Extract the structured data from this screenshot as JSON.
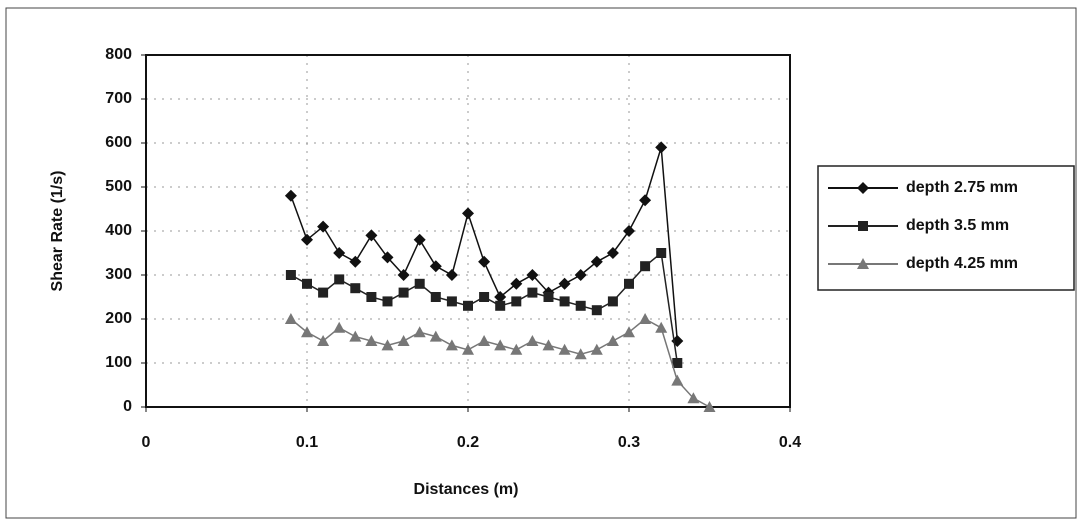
{
  "chart_data": {
    "type": "line",
    "x_label": "Distances (m)",
    "y_label": "Shear Rate (1/s)",
    "x": [
      0.09,
      0.1,
      0.11,
      0.12,
      0.13,
      0.14,
      0.15,
      0.16,
      0.17,
      0.18,
      0.19,
      0.2,
      0.21,
      0.22,
      0.23,
      0.24,
      0.25,
      0.26,
      0.27,
      0.28,
      0.29,
      0.3,
      0.31,
      0.32,
      0.33,
      0.34,
      0.35
    ],
    "series": [
      {
        "name": "depth 2.75 mm",
        "color": "#111111",
        "marker": "diamond",
        "values": [
          480,
          380,
          410,
          350,
          330,
          390,
          340,
          300,
          380,
          320,
          300,
          440,
          330,
          250,
          280,
          300,
          260,
          280,
          300,
          330,
          350,
          400,
          470,
          590,
          150,
          null,
          null
        ]
      },
      {
        "name": "depth 3.5 mm",
        "color": "#222222",
        "marker": "square",
        "values": [
          300,
          280,
          260,
          290,
          270,
          250,
          240,
          260,
          280,
          250,
          240,
          230,
          250,
          230,
          240,
          260,
          250,
          240,
          230,
          220,
          240,
          280,
          320,
          350,
          100,
          null,
          null
        ]
      },
      {
        "name": "depth 4.25 mm",
        "color": "#777777",
        "marker": "triangle",
        "values": [
          200,
          170,
          150,
          180,
          160,
          150,
          140,
          150,
          170,
          160,
          140,
          130,
          150,
          140,
          130,
          150,
          140,
          130,
          120,
          130,
          150,
          170,
          200,
          180,
          60,
          20,
          0
        ]
      }
    ],
    "xlim": [
      0,
      0.4
    ],
    "xticks": [
      0,
      0.1,
      0.2,
      0.3,
      0.4
    ],
    "ylim": [
      0,
      800
    ],
    "yticks": [
      0,
      100,
      200,
      300,
      400,
      500,
      600,
      700,
      800
    ],
    "grid": true,
    "legend": "right"
  }
}
